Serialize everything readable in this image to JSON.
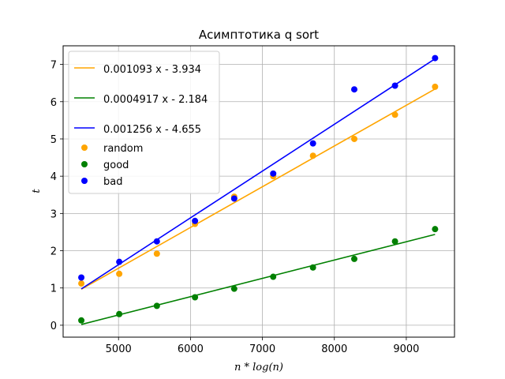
{
  "chart_data": {
    "type": "scatter",
    "title": "Асимптотика q sort",
    "xlabel": "n * log(n)",
    "ylabel": "t",
    "xlim": [
      4230,
      9670
    ],
    "ylim": [
      -0.32,
      7.5
    ],
    "xticks": [
      "5000",
      "6000",
      "7000",
      "8000",
      "9000"
    ],
    "xtick_values": [
      5000,
      6000,
      7000,
      8000,
      9000
    ],
    "yticks": [
      "0",
      "1",
      "2",
      "3",
      "4",
      "5",
      "6",
      "7"
    ],
    "ytick_values": [
      0,
      1,
      2,
      3,
      4,
      5,
      6,
      7
    ],
    "grid": true,
    "legend_position": "top-left",
    "x": [
      4483,
      5010,
      5533,
      6063,
      6608,
      7150,
      7703,
      8277,
      8843,
      9400
    ],
    "series": [
      {
        "name": "random",
        "color": "#ffa500",
        "y": [
          1.12,
          1.38,
          1.92,
          2.72,
          3.45,
          4.0,
          4.55,
          5.0,
          5.65,
          6.4
        ]
      },
      {
        "name": "good",
        "color": "#008000",
        "y": [
          0.13,
          0.3,
          0.52,
          0.75,
          0.98,
          1.3,
          1.55,
          1.78,
          2.25,
          2.58
        ]
      },
      {
        "name": "bad",
        "color": "#0000ff",
        "y": [
          1.28,
          1.7,
          2.25,
          2.8,
          3.4,
          4.07,
          4.88,
          6.33,
          6.43,
          7.17
        ]
      }
    ],
    "fits": [
      {
        "label": "0.001093 x - 3.934",
        "color": "#ffa500",
        "slope": 0.001093,
        "intercept": -3.934
      },
      {
        "label": "0.0004917 x - 2.184",
        "color": "#008000",
        "slope": 0.0004917,
        "intercept": -2.184
      },
      {
        "label": "0.001256 x - 4.655",
        "color": "#0000ff",
        "slope": 0.001256,
        "intercept": -4.655
      }
    ]
  }
}
